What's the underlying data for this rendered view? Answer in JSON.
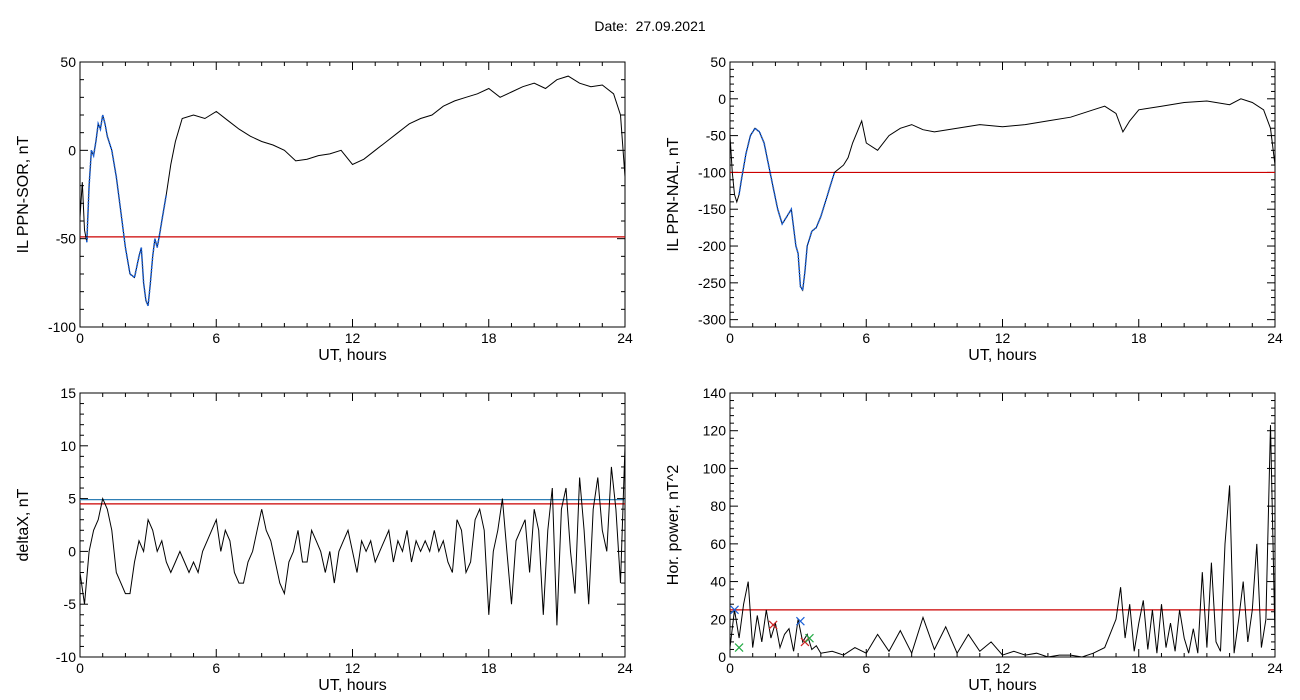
{
  "page": {
    "title": "Date:  27.09.2021"
  },
  "colors": {
    "trace": "#000000",
    "threshold": "#cc0000",
    "highlight": "#1a5fd6",
    "upper_line": "#2f7fb5",
    "marker_blue": "#1a5fd6",
    "marker_red": "#cc2222",
    "marker_green": "#22aa44"
  },
  "chart_data": [
    {
      "type": "line",
      "title": "",
      "xlabel": "UT, hours",
      "ylabel": "IL PPN-SOR, nT",
      "xlim": [
        0,
        24
      ],
      "ylim": [
        -100,
        50
      ],
      "xticks": [
        0,
        6,
        12,
        18,
        24
      ],
      "yticks": [
        -100,
        -50,
        0,
        50
      ],
      "grid": false,
      "series": [
        {
          "x": [
            0,
            0.1,
            0.2,
            0.3,
            0.4,
            0.5,
            0.6,
            0.7,
            0.8,
            0.9,
            1.0,
            1.1,
            1.2,
            1.4,
            1.6,
            1.8,
            2.0,
            2.2,
            2.4,
            2.6,
            2.7,
            2.8,
            2.9,
            3.0,
            3.1,
            3.2,
            3.3,
            3.4,
            3.5,
            3.6,
            3.8,
            4.0,
            4.2,
            4.5,
            5.0,
            5.5,
            6.0,
            6.5,
            7.0,
            7.5,
            8.0,
            8.5,
            9.0,
            9.5,
            10.0,
            10.5,
            11.0,
            11.5,
            12.0,
            12.5,
            13.0,
            13.5,
            14.0,
            14.5,
            15.0,
            15.5,
            16.0,
            16.5,
            17.0,
            17.5,
            18.0,
            18.5,
            19.0,
            19.5,
            20.0,
            20.5,
            21.0,
            21.5,
            22.0,
            22.5,
            23.0,
            23.5,
            23.8,
            24.0
          ],
          "y": [
            -38,
            -18,
            -45,
            -52,
            -20,
            0,
            -3,
            5,
            15,
            12,
            20,
            15,
            8,
            0,
            -15,
            -35,
            -55,
            -70,
            -72,
            -60,
            -55,
            -75,
            -85,
            -88,
            -75,
            -60,
            -50,
            -55,
            -48,
            -40,
            -25,
            -8,
            5,
            18,
            20,
            18,
            22,
            17,
            12,
            8,
            5,
            3,
            0,
            -6,
            -5,
            -3,
            -2,
            0,
            -8,
            -5,
            0,
            5,
            10,
            15,
            18,
            20,
            25,
            28,
            30,
            32,
            35,
            30,
            33,
            36,
            38,
            35,
            40,
            42,
            38,
            36,
            37,
            32,
            20,
            -15
          ]
        }
      ],
      "threshold": -49,
      "highlight_x": [
        0.3,
        3.8
      ]
    },
    {
      "type": "line",
      "title": "",
      "xlabel": "UT, hours",
      "ylabel": "IL PPN-NAL, nT",
      "xlim": [
        0,
        24
      ],
      "ylim": [
        -310,
        50
      ],
      "xticks": [
        0,
        6,
        12,
        18,
        24
      ],
      "yticks": [
        -300,
        -250,
        -200,
        -150,
        -100,
        -50,
        0,
        50
      ],
      "grid": false,
      "series": [
        {
          "x": [
            0,
            0.1,
            0.2,
            0.3,
            0.4,
            0.5,
            0.7,
            0.9,
            1.1,
            1.3,
            1.5,
            1.7,
            1.9,
            2.1,
            2.3,
            2.5,
            2.7,
            2.9,
            3.0,
            3.1,
            3.2,
            3.3,
            3.4,
            3.5,
            3.6,
            3.8,
            4.0,
            4.2,
            4.4,
            4.6,
            4.8,
            5.0,
            5.2,
            5.4,
            5.6,
            5.8,
            6.0,
            6.5,
            7.0,
            7.5,
            8.0,
            8.5,
            9.0,
            10.0,
            11.0,
            12.0,
            13.0,
            14.0,
            15.0,
            16.0,
            16.5,
            17.0,
            17.3,
            17.6,
            18.0,
            19.0,
            20.0,
            21.0,
            22.0,
            22.5,
            23.0,
            23.5,
            23.8,
            24.0
          ],
          "y": [
            -50,
            -100,
            -130,
            -140,
            -130,
            -110,
            -75,
            -50,
            -40,
            -45,
            -60,
            -90,
            -120,
            -150,
            -170,
            -160,
            -150,
            -200,
            -210,
            -255,
            -260,
            -235,
            -200,
            -190,
            -180,
            -175,
            -160,
            -140,
            -120,
            -100,
            -95,
            -90,
            -80,
            -60,
            -45,
            -30,
            -60,
            -70,
            -50,
            -40,
            -35,
            -42,
            -45,
            -40,
            -35,
            -38,
            -35,
            -30,
            -25,
            -15,
            -10,
            -20,
            -45,
            -30,
            -15,
            -10,
            -5,
            -3,
            -8,
            0,
            -5,
            -15,
            -40,
            -90
          ]
        }
      ],
      "threshold": -100,
      "highlight_x": [
        0.4,
        4.6
      ]
    },
    {
      "type": "line",
      "title": "",
      "xlabel": "UT, hours",
      "ylabel": "deltaX, nT",
      "xlim": [
        0,
        24
      ],
      "ylim": [
        -10,
        15
      ],
      "xticks": [
        0,
        6,
        12,
        18,
        24
      ],
      "yticks": [
        -10,
        -5,
        0,
        5,
        10,
        15
      ],
      "grid": false,
      "series": [
        {
          "x": [
            0,
            0.2,
            0.4,
            0.6,
            0.8,
            1.0,
            1.2,
            1.4,
            1.6,
            1.8,
            2.0,
            2.2,
            2.4,
            2.6,
            2.8,
            3.0,
            3.2,
            3.4,
            3.6,
            3.8,
            4.0,
            4.2,
            4.4,
            4.6,
            4.8,
            5.0,
            5.2,
            5.4,
            5.6,
            5.8,
            6.0,
            6.2,
            6.4,
            6.6,
            6.8,
            7.0,
            7.2,
            7.4,
            7.6,
            7.8,
            8.0,
            8.2,
            8.4,
            8.6,
            8.8,
            9.0,
            9.2,
            9.4,
            9.6,
            9.8,
            10.0,
            10.2,
            10.4,
            10.6,
            10.8,
            11.0,
            11.2,
            11.4,
            11.6,
            11.8,
            12.0,
            12.2,
            12.4,
            12.6,
            12.8,
            13.0,
            13.2,
            13.4,
            13.6,
            13.8,
            14.0,
            14.2,
            14.4,
            14.6,
            14.8,
            15.0,
            15.2,
            15.4,
            15.6,
            15.8,
            16.0,
            16.2,
            16.4,
            16.6,
            16.8,
            17.0,
            17.2,
            17.4,
            17.6,
            17.8,
            18.0,
            18.2,
            18.4,
            18.6,
            18.8,
            19.0,
            19.2,
            19.4,
            19.6,
            19.8,
            20.0,
            20.2,
            20.4,
            20.6,
            20.8,
            21.0,
            21.2,
            21.4,
            21.6,
            21.8,
            22.0,
            22.2,
            22.4,
            22.6,
            22.8,
            23.0,
            23.2,
            23.4,
            23.6,
            23.8,
            24.0
          ],
          "y": [
            -2,
            -5,
            0,
            2,
            3,
            5,
            4,
            2,
            -2,
            -3,
            -4,
            -4,
            -1,
            1,
            0,
            3,
            2,
            0,
            1,
            -1,
            -2,
            -1,
            0,
            -1,
            -2,
            -1,
            -2,
            0,
            1,
            2,
            3,
            0,
            2,
            1,
            -2,
            -3,
            -3,
            -1,
            0,
            2,
            4,
            2,
            1,
            -1,
            -3,
            -4,
            -1,
            0,
            2,
            -1,
            -1,
            2,
            1,
            0,
            -2,
            0,
            -3,
            0,
            1,
            2,
            0,
            -2,
            1,
            0,
            1,
            -1,
            0,
            1,
            2,
            -1,
            1,
            0,
            2,
            -1,
            1,
            0,
            1,
            0,
            2,
            0,
            1,
            -1,
            -2,
            3,
            2,
            -2,
            -1,
            3,
            4,
            2,
            -6,
            0,
            2,
            5,
            0,
            -5,
            1,
            2,
            3,
            -2,
            4,
            2,
            -6,
            2,
            6,
            -7,
            4,
            6,
            0,
            -4,
            7,
            2,
            -5,
            4,
            7,
            2,
            0,
            8,
            4,
            -3,
            10
          ]
        }
      ],
      "threshold": 4.5,
      "upper_line": 4.9
    },
    {
      "type": "line",
      "title": "",
      "xlabel": "UT, hours",
      "ylabel": "Hor. power, nT^2",
      "xlim": [
        0,
        24
      ],
      "ylim": [
        0,
        140
      ],
      "xticks": [
        0,
        6,
        12,
        18,
        24
      ],
      "yticks": [
        0,
        20,
        40,
        60,
        80,
        100,
        120,
        140
      ],
      "grid": false,
      "series": [
        {
          "x": [
            0,
            0.2,
            0.4,
            0.6,
            0.8,
            1.0,
            1.2,
            1.4,
            1.6,
            1.8,
            2.0,
            2.2,
            2.4,
            2.6,
            2.8,
            3.0,
            3.2,
            3.4,
            3.6,
            3.8,
            4.0,
            4.5,
            5.0,
            5.5,
            6.0,
            6.5,
            7.0,
            7.5,
            8.0,
            8.5,
            9.0,
            9.5,
            10.0,
            10.5,
            11.0,
            11.5,
            12.0,
            12.5,
            13.0,
            13.5,
            14.0,
            14.5,
            15.0,
            15.5,
            16.0,
            16.5,
            17.0,
            17.2,
            17.4,
            17.6,
            17.8,
            18.0,
            18.2,
            18.4,
            18.6,
            18.8,
            19.0,
            19.2,
            19.4,
            19.6,
            19.8,
            20.0,
            20.2,
            20.4,
            20.6,
            20.8,
            21.0,
            21.2,
            21.4,
            21.6,
            21.8,
            22.0,
            22.2,
            22.4,
            22.6,
            22.8,
            23.0,
            23.2,
            23.4,
            23.6,
            23.8,
            24.0
          ],
          "y": [
            5,
            25,
            10,
            28,
            40,
            5,
            22,
            8,
            25,
            10,
            18,
            5,
            12,
            15,
            3,
            20,
            8,
            12,
            4,
            6,
            2,
            3,
            1,
            5,
            2,
            12,
            3,
            14,
            2,
            21,
            4,
            16,
            2,
            12,
            3,
            8,
            1,
            3,
            1,
            2,
            0,
            1,
            1,
            0,
            2,
            5,
            20,
            37,
            10,
            28,
            3,
            18,
            30,
            4,
            25,
            2,
            28,
            5,
            18,
            3,
            25,
            10,
            2,
            15,
            2,
            45,
            5,
            50,
            8,
            3,
            60,
            91,
            2,
            20,
            40,
            8,
            25,
            60,
            5,
            20,
            123,
            10
          ]
        }
      ],
      "threshold": 25,
      "markers": [
        {
          "x": 0.2,
          "y": 25,
          "color": "blue"
        },
        {
          "x": 0.4,
          "y": 5,
          "color": "green"
        },
        {
          "x": 1.9,
          "y": 17,
          "color": "red"
        },
        {
          "x": 3.1,
          "y": 19,
          "color": "blue"
        },
        {
          "x": 3.3,
          "y": 8,
          "color": "red"
        },
        {
          "x": 3.5,
          "y": 10,
          "color": "green"
        }
      ]
    }
  ]
}
